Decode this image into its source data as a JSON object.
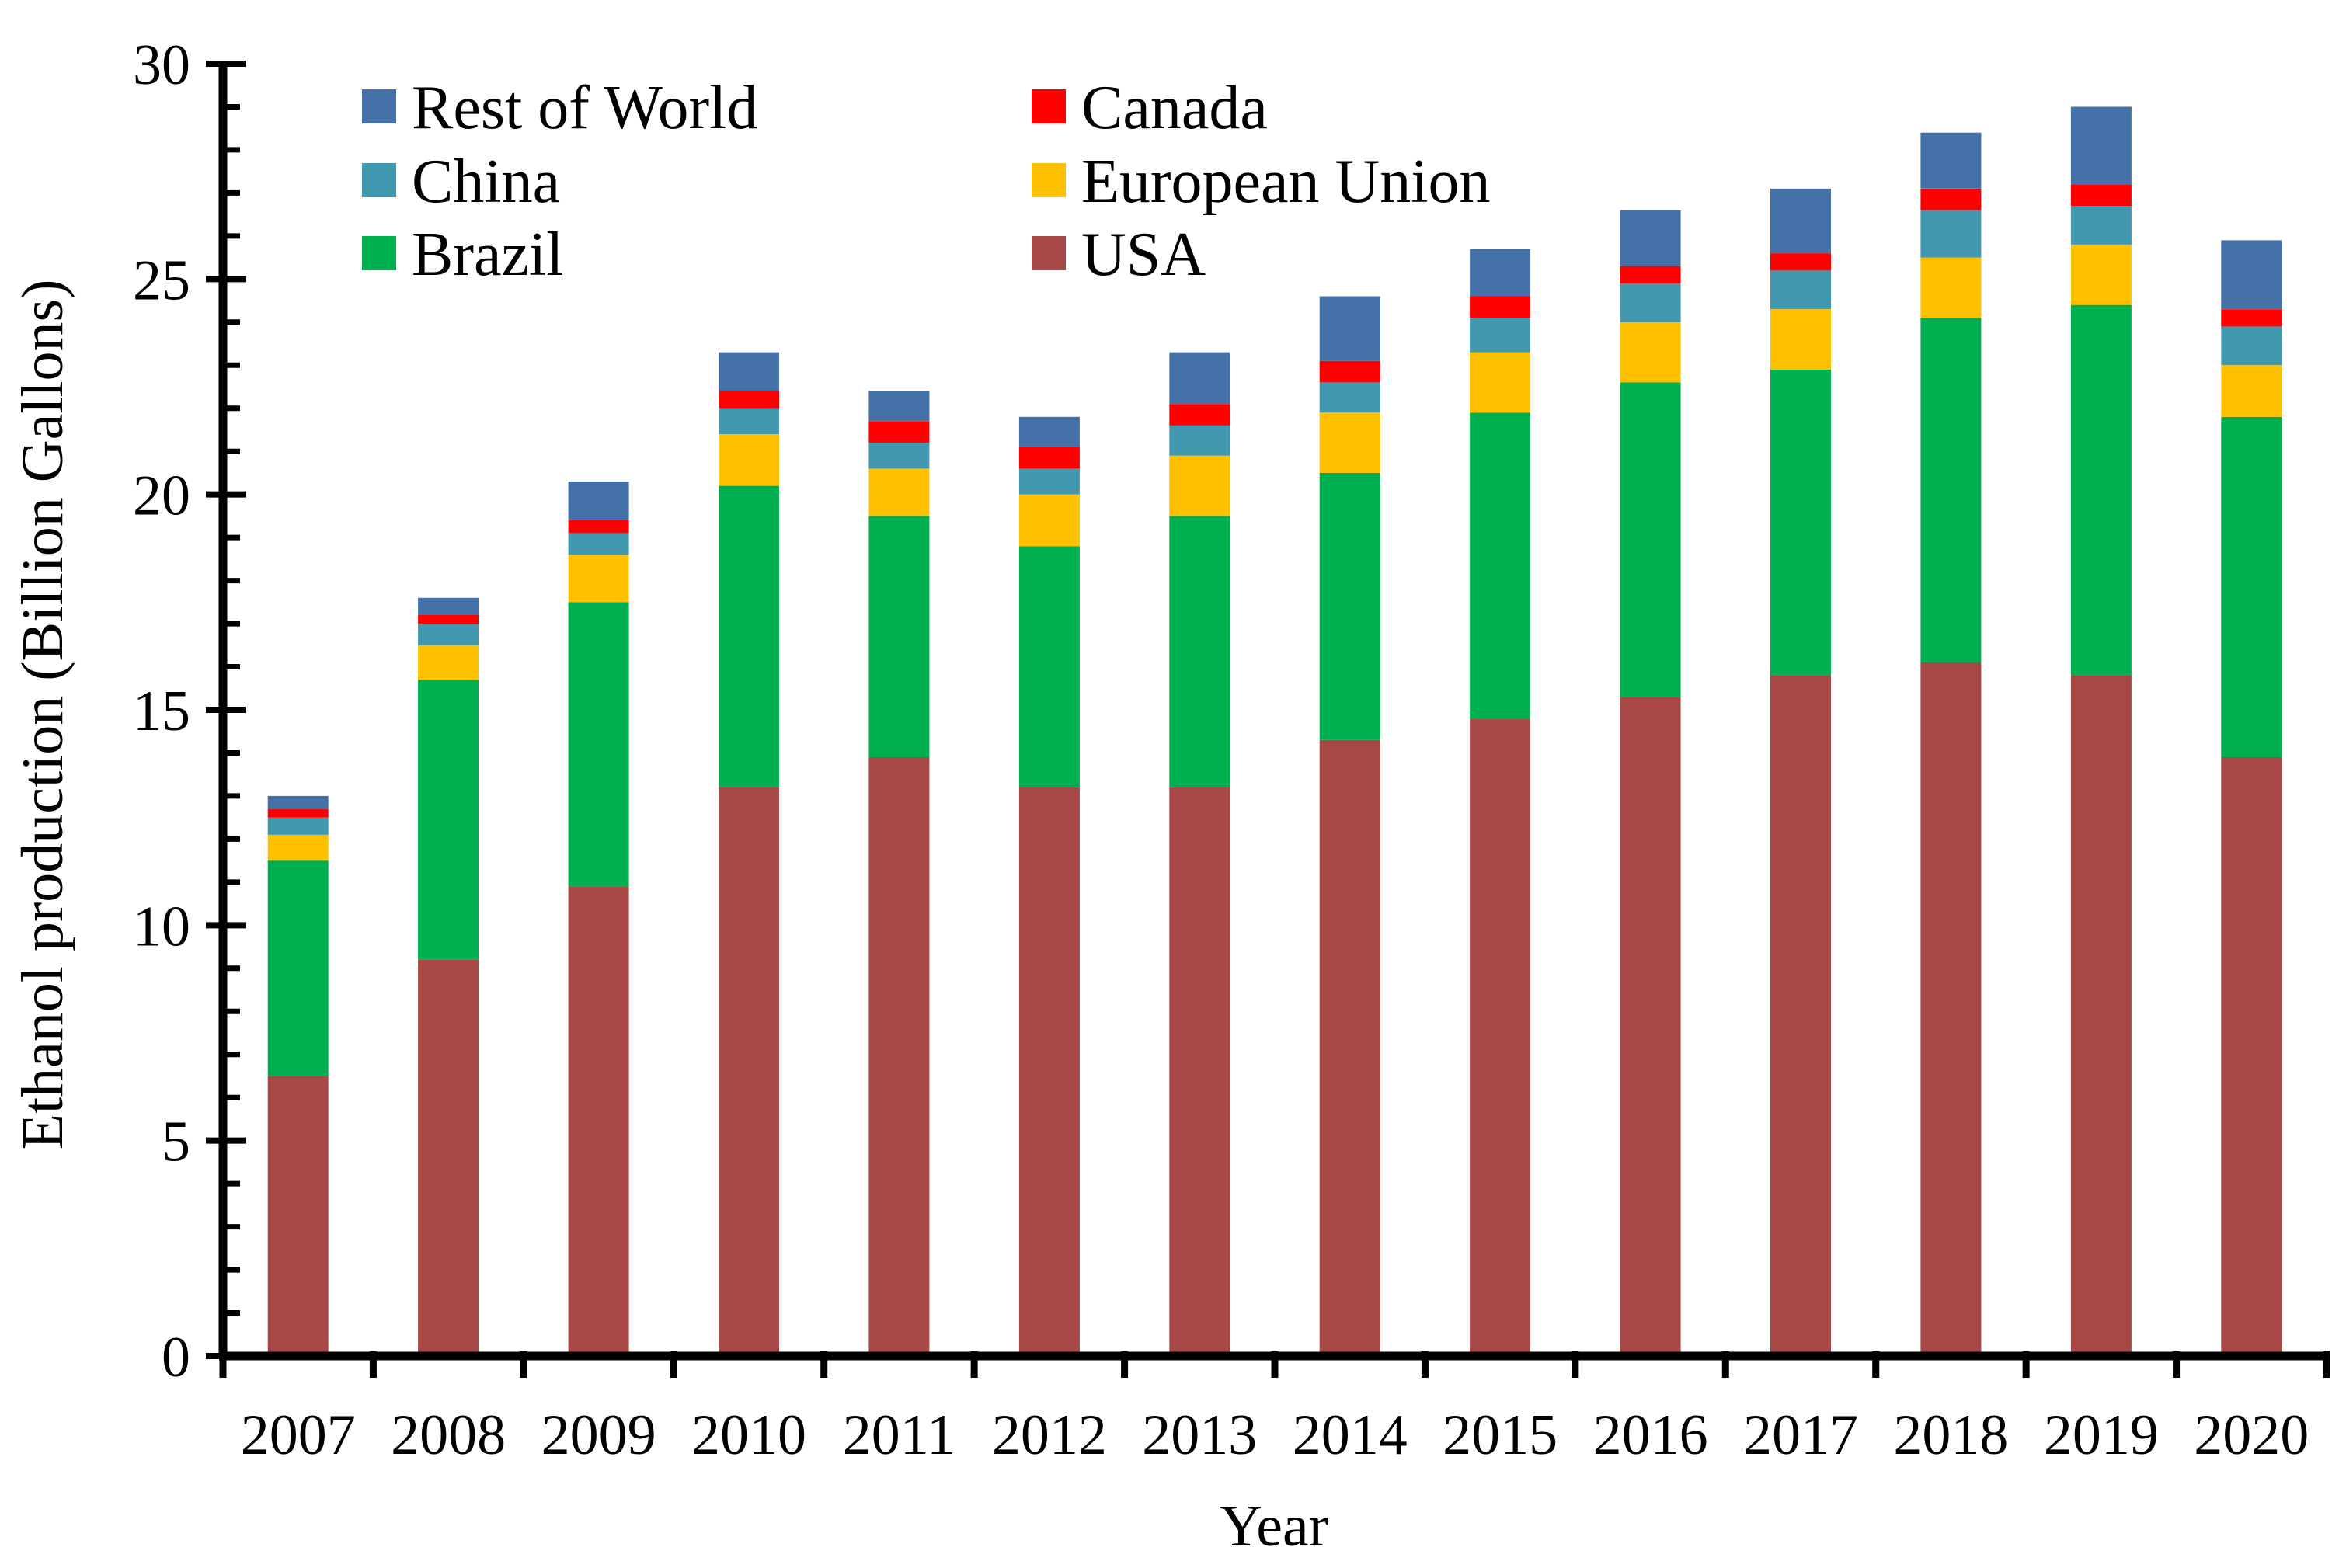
{
  "chart_data": {
    "type": "bar",
    "stacked": true,
    "title": "",
    "xlabel": "Year",
    "ylabel": "Ethanol production (Billion Gallons)",
    "ylim": [
      0,
      30
    ],
    "yticks": [
      0,
      5,
      10,
      15,
      20,
      25,
      30
    ],
    "grid": false,
    "legend_position": "top-left",
    "categories": [
      "2007",
      "2008",
      "2009",
      "2010",
      "2011",
      "2012",
      "2013",
      "2014",
      "2015",
      "2016",
      "2017",
      "2018",
      "2019",
      "2020"
    ],
    "series": [
      {
        "name": "USA",
        "color": "#A84846",
        "values": [
          6.5,
          9.2,
          10.9,
          13.2,
          13.9,
          13.2,
          13.2,
          14.3,
          14.8,
          15.3,
          15.8,
          16.1,
          15.8,
          13.9
        ]
      },
      {
        "name": "Brazil",
        "color": "#00B050",
        "values": [
          5.0,
          6.5,
          6.6,
          7.0,
          5.6,
          5.6,
          6.3,
          6.2,
          7.1,
          7.3,
          7.1,
          8.0,
          8.6,
          7.9
        ]
      },
      {
        "name": "European Union",
        "color": "#FFC000",
        "values": [
          0.6,
          0.8,
          1.1,
          1.2,
          1.1,
          1.2,
          1.4,
          1.4,
          1.4,
          1.4,
          1.4,
          1.4,
          1.4,
          1.2
        ]
      },
      {
        "name": "China",
        "color": "#4298AF",
        "values": [
          0.4,
          0.5,
          0.5,
          0.6,
          0.6,
          0.6,
          0.7,
          0.7,
          0.8,
          0.9,
          0.9,
          1.1,
          0.9,
          0.9
        ]
      },
      {
        "name": "Canada",
        "color": "#FF0000",
        "values": [
          0.2,
          0.2,
          0.3,
          0.4,
          0.5,
          0.5,
          0.5,
          0.5,
          0.5,
          0.4,
          0.4,
          0.5,
          0.5,
          0.4
        ]
      },
      {
        "name": "Rest of World",
        "color": "#4472A8",
        "values": [
          0.3,
          0.4,
          0.9,
          0.9,
          0.7,
          0.7,
          1.2,
          1.5,
          1.1,
          1.3,
          1.5,
          1.3,
          1.8,
          1.6
        ]
      }
    ],
    "legend_order": [
      "Rest of World",
      "Canada",
      "China",
      "European Union",
      "Brazil",
      "USA"
    ]
  }
}
